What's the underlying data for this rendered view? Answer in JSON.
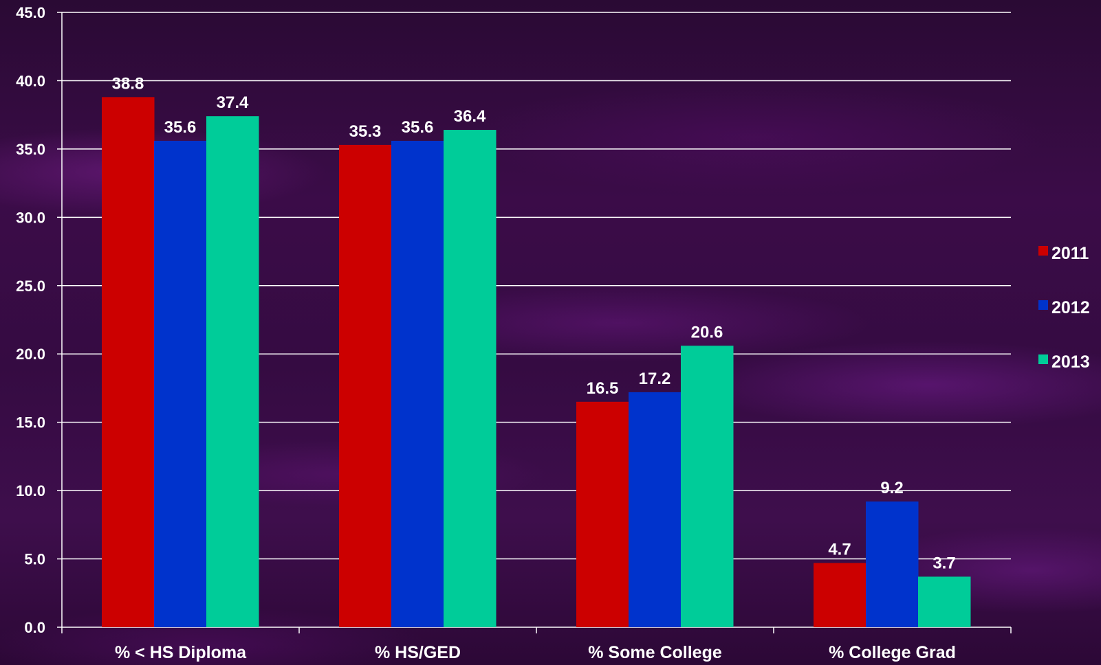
{
  "chart_data": {
    "type": "bar",
    "categories": [
      "% < HS Diploma",
      "% HS/GED",
      "% Some College",
      "% College Grad"
    ],
    "series": [
      {
        "name": "2011",
        "color": "#cc0000",
        "values": [
          38.8,
          35.3,
          16.5,
          4.7
        ]
      },
      {
        "name": "2012",
        "color": "#0033cc",
        "values": [
          35.6,
          35.6,
          17.2,
          9.2
        ]
      },
      {
        "name": "2013",
        "color": "#00cc99",
        "values": [
          37.4,
          36.4,
          20.6,
          3.7
        ]
      }
    ],
    "value_labels": [
      [
        "38.8",
        "35.3",
        "16.5",
        "4.7"
      ],
      [
        "35.6",
        "35.6",
        "17.2",
        "9.2"
      ],
      [
        "37.4",
        "36.4",
        "20.6",
        "3.7"
      ]
    ],
    "yticks": [
      "0.0",
      "5.0",
      "10.0",
      "15.0",
      "20.0",
      "25.0",
      "30.0",
      "35.0",
      "40.0",
      "45.0"
    ],
    "ylim": [
      0,
      45
    ],
    "title": "",
    "xlabel": "",
    "ylabel": "",
    "grid": true,
    "legend": "right"
  }
}
